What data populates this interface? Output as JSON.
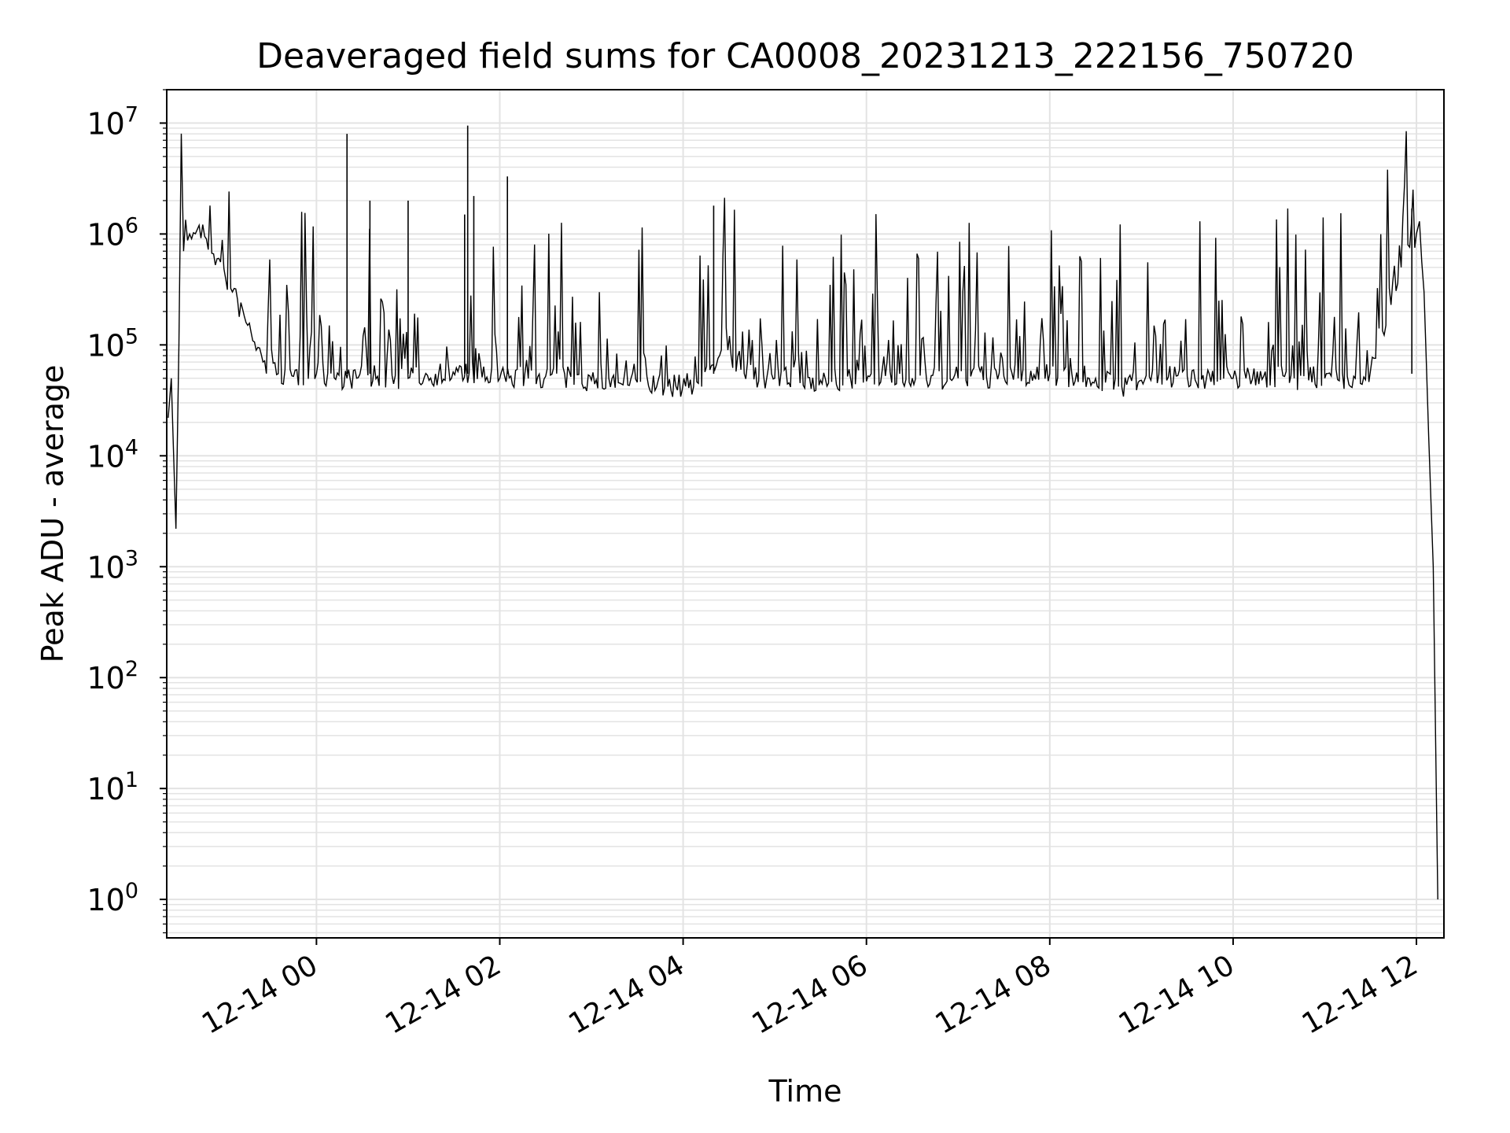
{
  "chart_data": {
    "type": "line",
    "title": "Deaveraged field sums for CA0008_20231213_222156_750720",
    "xlabel": "Time",
    "ylabel": "Peak ADU - average",
    "yscale": "log",
    "grid": true,
    "legend": "none",
    "xlim": [
      "2023-12-13 22:22",
      "2023-12-14 12:18"
    ],
    "ylim": [
      0.45,
      20000000
    ],
    "x_ticks": [
      {
        "t": "2023-12-14 00:00",
        "label": "12-14 00"
      },
      {
        "t": "2023-12-14 02:00",
        "label": "12-14 02"
      },
      {
        "t": "2023-12-14 04:00",
        "label": "12-14 04"
      },
      {
        "t": "2023-12-14 06:00",
        "label": "12-14 06"
      },
      {
        "t": "2023-12-14 08:00",
        "label": "12-14 08"
      },
      {
        "t": "2023-12-14 10:00",
        "label": "12-14 10"
      },
      {
        "t": "2023-12-14 12:00",
        "label": "12-14 12"
      }
    ],
    "y_ticks": [
      {
        "v": 1,
        "exp": "0"
      },
      {
        "v": 10,
        "exp": "1"
      },
      {
        "v": 100,
        "exp": "2"
      },
      {
        "v": 1000,
        "exp": "3"
      },
      {
        "v": 10000,
        "exp": "4"
      },
      {
        "v": 100000,
        "exp": "5"
      },
      {
        "v": 1000000,
        "exp": "6"
      },
      {
        "v": 10000000,
        "exp": "7"
      }
    ],
    "line_color": "#000000",
    "grid_color": "#e3e3e3",
    "series": [
      {
        "x": [
          "2023-12-13 22:23",
          "2023-12-13 22:25",
          "2023-12-13 22:28",
          "2023-12-13 22:30",
          "2023-12-13 22:33",
          "2023-12-13 22:37",
          "2023-12-13 22:42",
          "2023-12-13 22:48",
          "2023-12-13 22:55",
          "2023-12-13 23:05",
          "2023-12-13 23:15",
          "2023-12-13 23:25",
          "2023-12-13 23:35",
          "2023-12-13 23:45",
          "2023-12-14 00:00",
          "2023-12-14 00:20",
          "2023-12-14 00:40",
          "2023-12-14 01:00",
          "2023-12-14 01:20",
          "2023-12-14 01:40",
          "2023-12-14 02:00",
          "2023-12-14 02:30",
          "2023-12-14 03:00",
          "2023-12-14 03:30",
          "2023-12-14 03:50",
          "2023-12-14 04:10",
          "2023-12-14 04:25",
          "2023-12-14 04:40",
          "2023-12-14 05:00",
          "2023-12-14 05:30",
          "2023-12-14 06:00",
          "2023-12-14 06:30",
          "2023-12-14 07:00",
          "2023-12-14 07:30",
          "2023-12-14 08:00",
          "2023-12-14 08:30",
          "2023-12-14 08:45",
          "2023-12-14 09:00",
          "2023-12-14 09:30",
          "2023-12-14 10:00",
          "2023-12-14 10:20",
          "2023-12-14 10:40",
          "2023-12-14 11:00",
          "2023-12-14 11:20",
          "2023-12-14 11:30",
          "2023-12-14 11:40",
          "2023-12-14 11:50",
          "2023-12-14 12:00",
          "2023-12-14 12:02",
          "2023-12-14 12:05",
          "2023-12-14 12:08",
          "2023-12-14 12:11",
          "2023-12-14 12:14"
        ],
        "y": [
          22000,
          50000,
          2200,
          100000,
          700000,
          1000000,
          1100000,
          900000,
          600000,
          300000,
          150000,
          70000,
          55000,
          52000,
          55000,
          50000,
          52000,
          50000,
          55000,
          56000,
          50000,
          52000,
          48000,
          46000,
          42000,
          45000,
          90000,
          55000,
          50000,
          48000,
          47000,
          50000,
          50000,
          52000,
          55000,
          50000,
          42000,
          48000,
          52000,
          50000,
          52000,
          50000,
          50000,
          50000,
          60000,
          150000,
          500000,
          1000000,
          1300000,
          300000,
          15000,
          1000,
          1
        ],
        "spikes": [
          {
            "x": "2023-12-14 00:20",
            "y": 8000000
          },
          {
            "x": "2023-12-14 00:35",
            "y": 2000000
          },
          {
            "x": "2023-12-14 01:00",
            "y": 2000000
          },
          {
            "x": "2023-12-14 01:37",
            "y": 1500000
          },
          {
            "x": "2023-12-14 01:39",
            "y": 9500000
          },
          {
            "x": "2023-12-14 01:43",
            "y": 2200000
          },
          {
            "x": "2023-12-14 02:05",
            "y": 3300000
          },
          {
            "x": "2023-12-14 04:20",
            "y": 1800000
          },
          {
            "x": "2023-12-14 11:57",
            "y": 1700000
          }
        ]
      }
    ]
  }
}
